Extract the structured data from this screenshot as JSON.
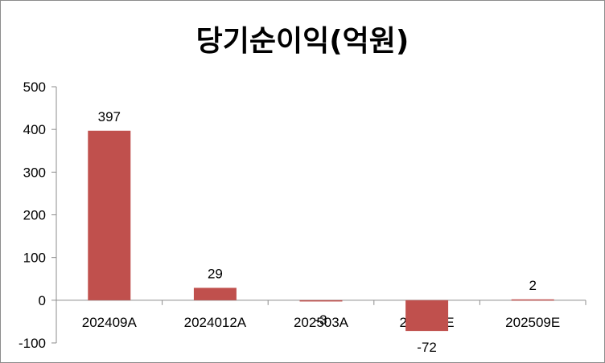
{
  "chart_data": {
    "type": "bar",
    "title": "당기순이익(억원)",
    "categories": [
      "202409A",
      "2024012A",
      "202503A",
      "202506E",
      "202509E"
    ],
    "values": [
      397,
      29,
      -3,
      -72,
      2
    ],
    "data_labels": [
      "397",
      "29",
      "-3",
      "-72",
      "2"
    ],
    "ylim": [
      -100,
      500
    ],
    "yticks": [
      -100,
      0,
      100,
      200,
      300,
      400,
      500
    ],
    "bar_color": "#c0504d",
    "grid": false,
    "legend": false
  }
}
